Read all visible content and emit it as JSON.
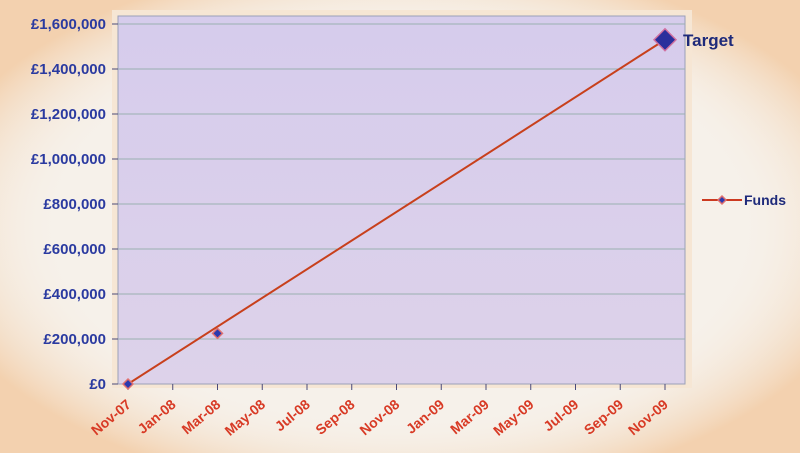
{
  "chart_data": {
    "type": "line",
    "title": "",
    "xlabel": "",
    "ylabel": "",
    "x_ticks": [
      "Nov-07",
      "Jan-08",
      "Mar-08",
      "May-08",
      "Jul-08",
      "Sep-08",
      "Nov-08",
      "Jan-09",
      "Mar-09",
      "May-09",
      "Jul-09",
      "Sep-09",
      "Nov-09"
    ],
    "y_ticks": [
      "£0",
      "£200,000",
      "£400,000",
      "£600,000",
      "£800,000",
      "£1,000,000",
      "£1,200,000",
      "£1,400,000",
      "£1,600,000"
    ],
    "ylim": [
      0,
      1600000
    ],
    "xlim": [
      "Nov-07",
      "Nov-09"
    ],
    "grid": true,
    "legend_position": "right",
    "series": [
      {
        "name": "Funds",
        "color": "#cc3a20",
        "marker": "diamond",
        "points": [
          {
            "x": "Nov-07",
            "y": 0
          },
          {
            "x": "Mar-08",
            "y": 225000
          }
        ]
      }
    ],
    "trend_line": {
      "color": "#c8401c",
      "from": {
        "x": "Nov-07",
        "y": 0
      },
      "to": {
        "x": "Nov-09",
        "y": 1530000
      }
    },
    "annotations": [
      {
        "text": "Target",
        "x": "Nov-09",
        "y": 1530000,
        "marker": "diamond",
        "color": "#2a2f9c"
      }
    ]
  }
}
